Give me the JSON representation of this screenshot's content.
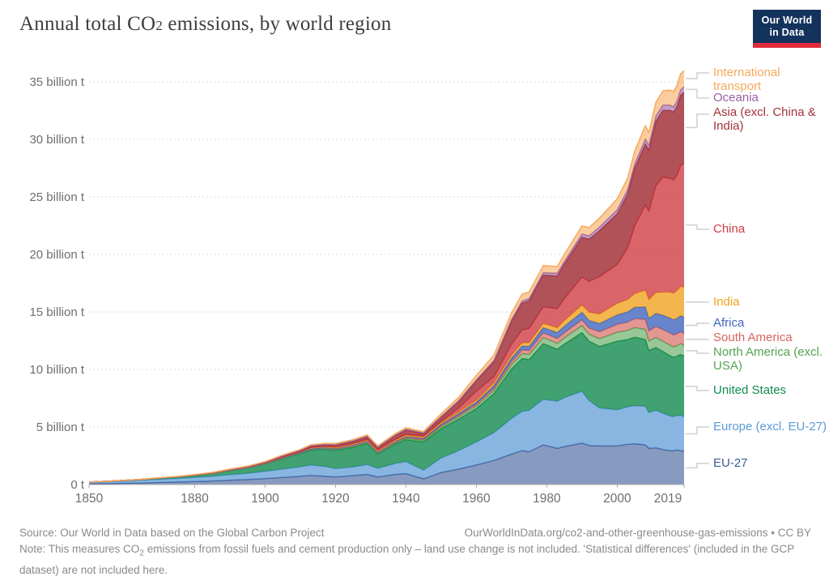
{
  "header": {
    "title_pre": "Annual total CO",
    "title_sub": "2",
    "title_post": " emissions, by world region",
    "logo_line1": "Our World",
    "logo_line2": "in Data",
    "logo_bg": "#14335C",
    "logo_accent": "#E0293B"
  },
  "chart_data": {
    "type": "area",
    "stacked": true,
    "title": "Annual total CO2 emissions, by world region",
    "ylabel": "",
    "xlabel": "",
    "unit": "billion t",
    "xlim": [
      1850,
      2019
    ],
    "ylim": [
      0,
      36.5
    ],
    "grid": "dashed-horizontal",
    "legend_position": "right",
    "x_ticks": [
      1850,
      1880,
      1900,
      1920,
      1940,
      1960,
      1980,
      2000,
      2019
    ],
    "y_ticks": [
      {
        "value": 0,
        "label": "0 t"
      },
      {
        "value": 5,
        "label": "5 billion t"
      },
      {
        "value": 10,
        "label": "10 billion t"
      },
      {
        "value": 15,
        "label": "15 billion t"
      },
      {
        "value": 20,
        "label": "20 billion t"
      },
      {
        "value": 25,
        "label": "25 billion t"
      },
      {
        "value": 30,
        "label": "30 billion t"
      },
      {
        "value": 35,
        "label": "35 billion t"
      }
    ],
    "x": [
      1850,
      1855,
      1860,
      1865,
      1870,
      1875,
      1880,
      1885,
      1890,
      1895,
      1900,
      1905,
      1910,
      1913,
      1917,
      1920,
      1925,
      1929,
      1932,
      1937,
      1940,
      1945,
      1950,
      1955,
      1960,
      1965,
      1970,
      1973,
      1975,
      1979,
      1983,
      1985,
      1990,
      1992,
      1995,
      2000,
      2003,
      2005,
      2008,
      2009,
      2011,
      2013,
      2015,
      2016,
      2017,
      2018,
      2019
    ],
    "series": [
      {
        "name": "eu-27",
        "label": "EU-27",
        "color": "#3E5C97",
        "fill_opacity": 0.62,
        "values": [
          0.07,
          0.09,
          0.11,
          0.14,
          0.18,
          0.22,
          0.26,
          0.31,
          0.38,
          0.44,
          0.52,
          0.62,
          0.72,
          0.8,
          0.72,
          0.66,
          0.78,
          0.88,
          0.66,
          0.88,
          0.95,
          0.5,
          1.05,
          1.35,
          1.7,
          2.1,
          2.65,
          2.95,
          2.85,
          3.45,
          3.15,
          3.3,
          3.6,
          3.4,
          3.35,
          3.35,
          3.5,
          3.55,
          3.45,
          3.15,
          3.2,
          3.05,
          2.95,
          2.95,
          3.0,
          2.95,
          2.9
        ]
      },
      {
        "name": "europe-excl-eu27",
        "label": "Europe (excl. EU-27)",
        "color": "#5B9AD5",
        "fill_opacity": 0.72,
        "values": [
          0.12,
          0.15,
          0.19,
          0.22,
          0.27,
          0.31,
          0.36,
          0.4,
          0.47,
          0.53,
          0.62,
          0.72,
          0.82,
          0.9,
          0.85,
          0.72,
          0.75,
          0.85,
          0.75,
          0.95,
          1.05,
          0.75,
          1.25,
          1.6,
          2.0,
          2.4,
          3.1,
          3.4,
          3.6,
          3.95,
          4.1,
          4.25,
          4.5,
          3.9,
          3.3,
          3.15,
          3.25,
          3.3,
          3.35,
          3.1,
          3.25,
          3.15,
          3.0,
          2.95,
          3.0,
          3.05,
          3.0
        ]
      },
      {
        "name": "united-states",
        "label": "United States",
        "color": "#128A4D",
        "fill_opacity": 0.8,
        "values": [
          0.02,
          0.04,
          0.06,
          0.08,
          0.1,
          0.14,
          0.18,
          0.25,
          0.37,
          0.48,
          0.66,
          0.92,
          1.15,
          1.3,
          1.5,
          1.6,
          1.7,
          1.85,
          1.25,
          1.7,
          1.9,
          2.45,
          2.55,
          2.75,
          2.9,
          3.4,
          4.3,
          4.6,
          4.4,
          4.85,
          4.5,
          4.65,
          5.1,
          5.15,
          5.35,
          5.95,
          5.85,
          5.95,
          5.8,
          5.4,
          5.45,
          5.35,
          5.25,
          5.15,
          5.15,
          5.3,
          5.25
        ]
      },
      {
        "name": "north-america-excl-usa",
        "label": "North America (excl. USA)",
        "color": "#54A352",
        "fill_opacity": 0.6,
        "values": [
          0,
          0,
          0,
          0,
          0.01,
          0.01,
          0.01,
          0.01,
          0.02,
          0.02,
          0.03,
          0.04,
          0.06,
          0.07,
          0.08,
          0.08,
          0.09,
          0.1,
          0.08,
          0.1,
          0.12,
          0.14,
          0.17,
          0.2,
          0.23,
          0.28,
          0.38,
          0.43,
          0.45,
          0.52,
          0.52,
          0.55,
          0.62,
          0.63,
          0.68,
          0.78,
          0.8,
          0.85,
          0.88,
          0.83,
          0.88,
          0.9,
          0.92,
          0.92,
          0.93,
          0.95,
          0.95
        ]
      },
      {
        "name": "south-america",
        "label": "South America",
        "color": "#D4655F",
        "fill_opacity": 0.68,
        "values": [
          0,
          0,
          0,
          0,
          0,
          0,
          0.01,
          0.01,
          0.01,
          0.01,
          0.01,
          0.02,
          0.02,
          0.03,
          0.03,
          0.04,
          0.05,
          0.05,
          0.05,
          0.06,
          0.07,
          0.08,
          0.1,
          0.13,
          0.16,
          0.2,
          0.27,
          0.32,
          0.35,
          0.42,
          0.42,
          0.44,
          0.5,
          0.52,
          0.6,
          0.7,
          0.72,
          0.78,
          0.88,
          0.87,
          0.95,
          1.02,
          1.05,
          1.03,
          1.03,
          1.02,
          1.03
        ]
      },
      {
        "name": "africa",
        "label": "Africa",
        "color": "#3E63BC",
        "fill_opacity": 0.78,
        "values": [
          0,
          0,
          0,
          0,
          0,
          0,
          0,
          0.01,
          0.01,
          0.01,
          0.01,
          0.02,
          0.02,
          0.03,
          0.04,
          0.04,
          0.05,
          0.05,
          0.05,
          0.07,
          0.08,
          0.1,
          0.13,
          0.15,
          0.17,
          0.22,
          0.3,
          0.34,
          0.36,
          0.45,
          0.52,
          0.57,
          0.65,
          0.67,
          0.72,
          0.82,
          0.9,
          0.98,
          1.08,
          1.1,
          1.15,
          1.25,
          1.3,
          1.32,
          1.35,
          1.4,
          1.42
        ]
      },
      {
        "name": "india",
        "label": "India",
        "color": "#F0A11D",
        "fill_opacity": 0.78,
        "values": [
          0,
          0,
          0,
          0.01,
          0.01,
          0.01,
          0.01,
          0.02,
          0.02,
          0.03,
          0.03,
          0.04,
          0.05,
          0.06,
          0.07,
          0.07,
          0.08,
          0.08,
          0.08,
          0.09,
          0.1,
          0.11,
          0.12,
          0.14,
          0.17,
          0.22,
          0.25,
          0.28,
          0.31,
          0.35,
          0.42,
          0.48,
          0.62,
          0.7,
          0.82,
          0.98,
          1.05,
          1.18,
          1.45,
          1.6,
          1.8,
          2.0,
          2.25,
          2.3,
          2.4,
          2.55,
          2.6
        ]
      },
      {
        "name": "china",
        "label": "China",
        "color": "#CE3A41",
        "fill_opacity": 0.78,
        "values": [
          0,
          0,
          0,
          0,
          0,
          0,
          0,
          0,
          0.01,
          0.01,
          0.01,
          0.02,
          0.02,
          0.03,
          0.04,
          0.05,
          0.06,
          0.08,
          0.08,
          0.1,
          0.12,
          0.1,
          0.12,
          0.35,
          0.78,
          0.55,
          0.95,
          1.1,
          1.25,
          1.45,
          1.65,
          1.9,
          2.45,
          2.7,
          3.25,
          3.4,
          4.5,
          5.9,
          7.4,
          7.7,
          9.3,
          10.0,
          9.9,
          9.85,
          10.0,
          10.5,
          10.8
        ]
      },
      {
        "name": "asia-excl-china-india",
        "label": "Asia (excl. China & India)",
        "color": "#A2343A",
        "fill_opacity": 0.85,
        "values": [
          0,
          0,
          0,
          0,
          0,
          0,
          0.01,
          0.02,
          0.02,
          0.03,
          0.05,
          0.08,
          0.1,
          0.12,
          0.14,
          0.18,
          0.2,
          0.22,
          0.22,
          0.3,
          0.35,
          0.2,
          0.35,
          0.55,
          0.9,
          1.3,
          2.0,
          2.35,
          2.4,
          2.75,
          2.85,
          3.0,
          3.45,
          3.65,
          4.0,
          4.4,
          4.7,
          5.0,
          5.3,
          5.3,
          5.6,
          5.8,
          5.9,
          5.9,
          6.0,
          6.1,
          6.15
        ]
      },
      {
        "name": "oceania",
        "label": "Oceania",
        "color": "#9A5FA4",
        "fill_opacity": 0.6,
        "values": [
          0,
          0,
          0,
          0,
          0,
          0,
          0.01,
          0.01,
          0.01,
          0.02,
          0.02,
          0.03,
          0.03,
          0.04,
          0.04,
          0.04,
          0.05,
          0.05,
          0.05,
          0.06,
          0.06,
          0.07,
          0.08,
          0.09,
          0.1,
          0.12,
          0.16,
          0.18,
          0.19,
          0.22,
          0.24,
          0.25,
          0.28,
          0.29,
          0.31,
          0.35,
          0.37,
          0.4,
          0.43,
          0.43,
          0.44,
          0.45,
          0.46,
          0.46,
          0.47,
          0.48,
          0.48
        ]
      },
      {
        "name": "international-transport",
        "label": "International transport",
        "color": "#F6A95C",
        "fill_opacity": 0.58,
        "values": [
          0,
          0,
          0,
          0,
          0.01,
          0.01,
          0.01,
          0.01,
          0.02,
          0.02,
          0.03,
          0.05,
          0.06,
          0.08,
          0.07,
          0.08,
          0.09,
          0.1,
          0.09,
          0.12,
          0.12,
          0.1,
          0.22,
          0.28,
          0.37,
          0.45,
          0.55,
          0.6,
          0.58,
          0.62,
          0.58,
          0.6,
          0.7,
          0.72,
          0.78,
          0.95,
          1.0,
          1.1,
          1.18,
          1.1,
          1.2,
          1.25,
          1.3,
          1.32,
          1.35,
          1.38,
          1.4
        ]
      }
    ]
  },
  "footer": {
    "source": "Source: Our World in Data based on the Global Carbon Project",
    "citation": "OurWorldInData.org/co2-and-other-greenhouse-gas-emissions • CC BY",
    "note_pre": "Note: This measures CO",
    "note_sub": "2",
    "note_post": " emissions from fossil fuels and cement production only – land use change is not included. 'Statistical differences' (included in the GCP dataset) are not included here."
  }
}
